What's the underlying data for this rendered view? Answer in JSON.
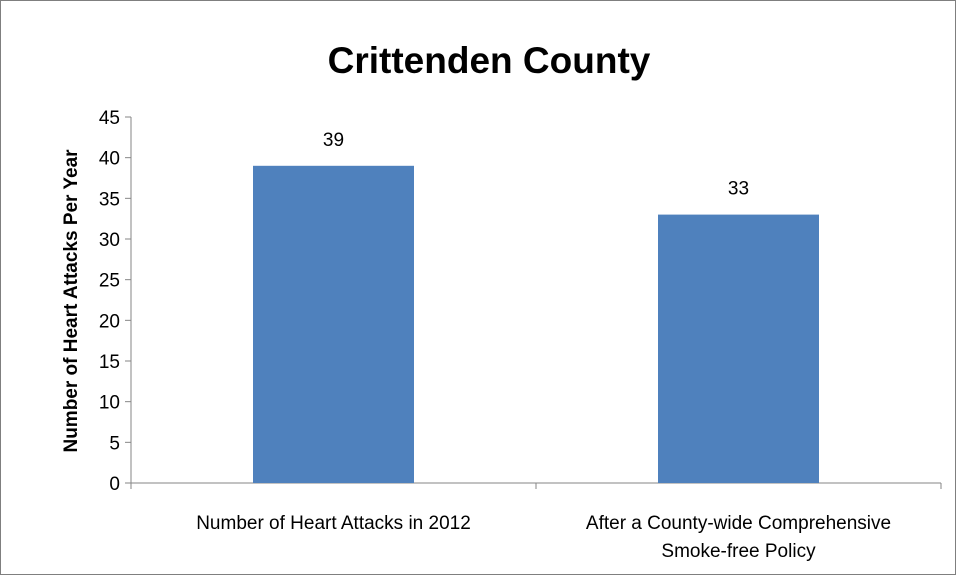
{
  "chart_data": {
    "type": "bar",
    "title": "Crittenden County",
    "xlabel": "",
    "ylabel": "Number of Heart Attacks Per Year",
    "categories": [
      [
        "Number of Heart Attacks in 2012"
      ],
      [
        "After a County-wide Comprehensive",
        "Smoke-free Policy"
      ]
    ],
    "values": [
      39,
      33
    ],
    "value_labels": [
      "39",
      "33"
    ],
    "ylim": [
      0,
      45
    ],
    "yticks": [
      0,
      5,
      10,
      15,
      20,
      25,
      30,
      35,
      40,
      45
    ],
    "ytick_labels": [
      "0",
      "5",
      "10",
      "15",
      "20",
      "25",
      "30",
      "35",
      "40",
      "45"
    ],
    "grid": false,
    "legend": "none",
    "bar_color": "#4f81bd",
    "axis_color": "#868686"
  }
}
